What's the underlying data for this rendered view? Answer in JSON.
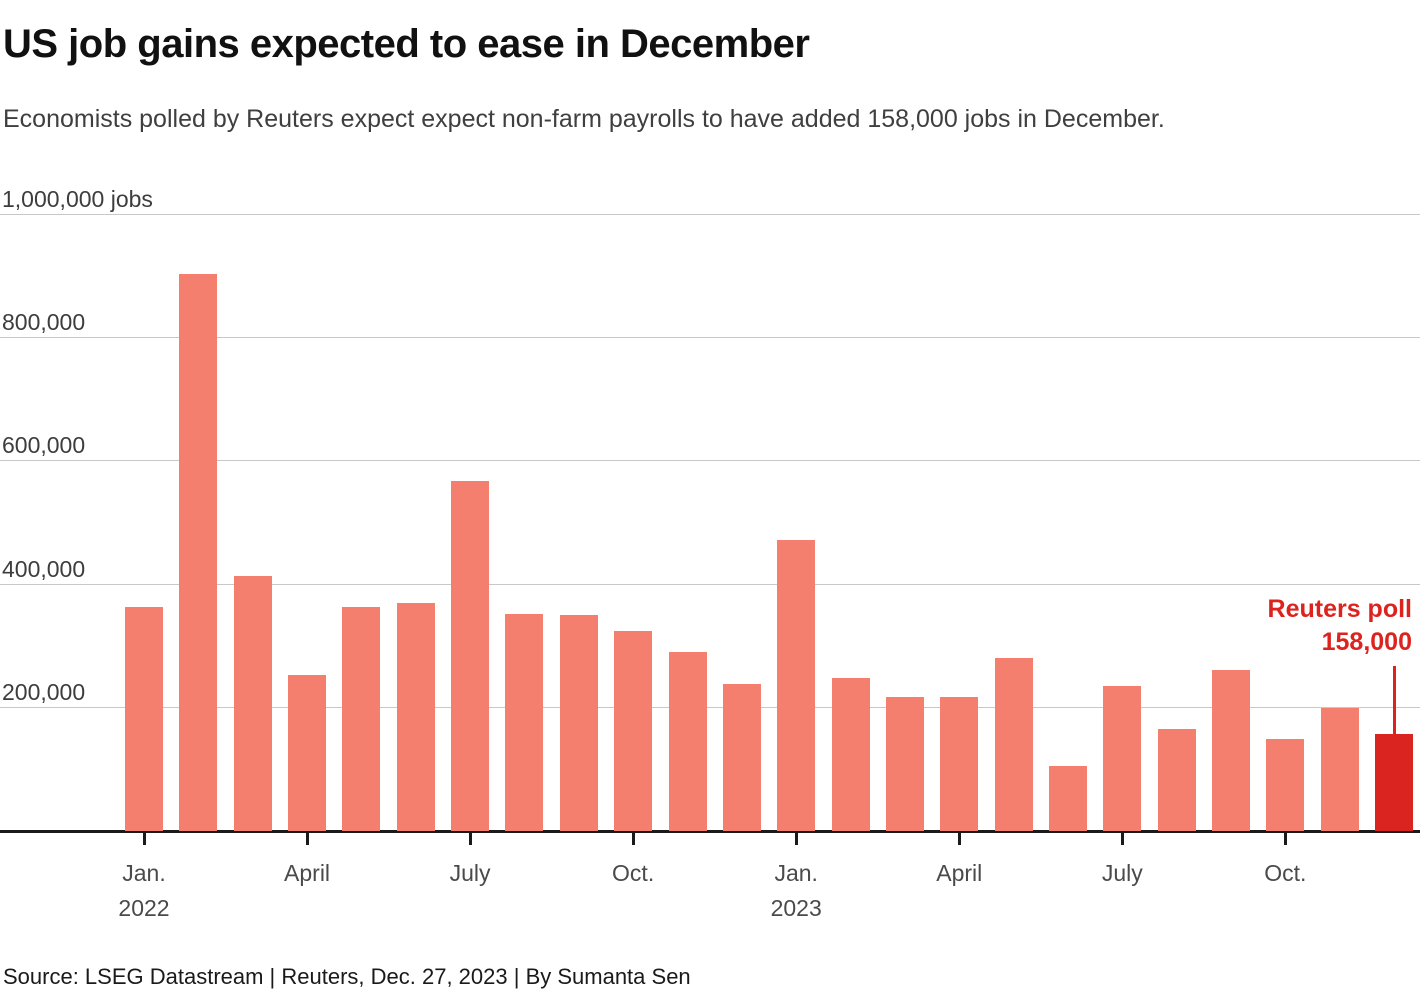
{
  "header": {
    "title": "US job gains expected to ease in December",
    "subtitle": "Economists polled by Reuters expect expect non-farm payrolls to have added 158,000 jobs in December."
  },
  "footer": {
    "source": "Source: LSEG Datastream | Reuters, Dec. 27, 2023 | By Sumanta Sen"
  },
  "chart_data": {
    "type": "bar",
    "title": "US job gains expected to ease in December",
    "ylabel": "jobs",
    "ylim": [
      0,
      1000000
    ],
    "grid": true,
    "categories": [
      "Jan. 2022",
      "Feb. 2022",
      "Mar. 2022",
      "Apr. 2022",
      "May 2022",
      "June 2022",
      "July 2022",
      "Aug. 2022",
      "Sep. 2022",
      "Oct. 2022",
      "Nov. 2022",
      "Dec. 2022",
      "Jan. 2023",
      "Feb. 2023",
      "Mar. 2023",
      "Apr. 2023",
      "May 2023",
      "June 2023",
      "July 2023",
      "Aug. 2023",
      "Sep. 2023",
      "Oct. 2023",
      "Nov. 2023",
      "Dec. 2023 (Reuters poll)"
    ],
    "values": [
      364000,
      904000,
      414000,
      254000,
      364000,
      370000,
      568000,
      352000,
      350000,
      324000,
      290000,
      239000,
      472000,
      248000,
      217000,
      217000,
      281000,
      105000,
      236000,
      165000,
      262000,
      150000,
      199000,
      158000
    ],
    "highlight_index": 23,
    "y_ticks": [
      {
        "value": 1000000,
        "label": "1,000,000 jobs"
      },
      {
        "value": 800000,
        "label": "800,000"
      },
      {
        "value": 600000,
        "label": "600,000"
      },
      {
        "value": 400000,
        "label": "400,000"
      },
      {
        "value": 200000,
        "label": "200,000"
      }
    ],
    "x_ticks": [
      {
        "index": 0,
        "label": "Jan.",
        "year": "2022"
      },
      {
        "index": 3,
        "label": "April",
        "year": ""
      },
      {
        "index": 6,
        "label": "July",
        "year": ""
      },
      {
        "index": 9,
        "label": "Oct.",
        "year": ""
      },
      {
        "index": 12,
        "label": "Jan.",
        "year": "2023"
      },
      {
        "index": 15,
        "label": "April",
        "year": ""
      },
      {
        "index": 18,
        "label": "July",
        "year": ""
      },
      {
        "index": 21,
        "label": "Oct.",
        "year": ""
      }
    ],
    "annotation": {
      "label": "Reuters poll",
      "value_label": "158,000",
      "target_index": 23
    },
    "colors": {
      "bar": "#f47f6e",
      "highlight": "#d9241f",
      "annotation_text": "#dd231e",
      "grid": "#c8c8c8",
      "axis": "#1a1a1a"
    }
  }
}
